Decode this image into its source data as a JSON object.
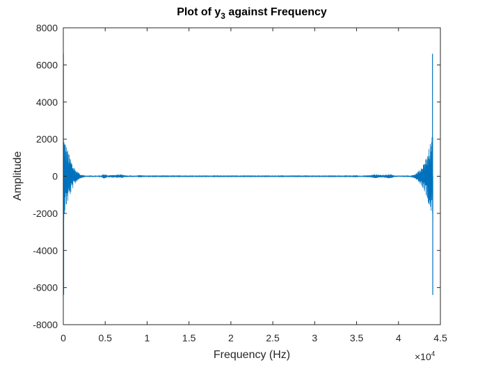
{
  "chart_data": {
    "type": "line",
    "title": {
      "prefix": "Plot of y",
      "subscript": "3",
      "suffix": " against Frequency"
    },
    "xlabel": "Frequency (Hz)",
    "ylabel": "Amplitude",
    "xlim": [
      0,
      45000
    ],
    "ylim": [
      -8000,
      8000
    ],
    "x_tick_values": [
      0,
      5000,
      10000,
      15000,
      20000,
      25000,
      30000,
      35000,
      40000,
      45000
    ],
    "x_tick_labels": [
      "0",
      "0.5",
      "1",
      "1.5",
      "2",
      "2.5",
      "3",
      "3.5",
      "4",
      "4.5"
    ],
    "x_exponent": {
      "base": "×10",
      "power": "4"
    },
    "y_tick_values": [
      -8000,
      -6000,
      -4000,
      -2000,
      0,
      2000,
      4000,
      6000,
      8000
    ],
    "y_tick_labels": [
      "-8000",
      "-6000",
      "-4000",
      "-2000",
      "0",
      "2000",
      "4000",
      "6000",
      "8000"
    ],
    "grid": false,
    "box": true,
    "series": [
      {
        "color": "#0072BD",
        "x_end": 44100,
        "spikes": [
          {
            "x": 10,
            "y": 6600
          },
          {
            "x": 40,
            "y": -6400
          },
          {
            "x": 44060,
            "y": 6600
          },
          {
            "x": 44090,
            "y": -6400
          }
        ],
        "envelope": [
          {
            "x": 0,
            "amp": 2500
          },
          {
            "x": 300,
            "amp": 1800
          },
          {
            "x": 700,
            "amp": 1200
          },
          {
            "x": 1100,
            "amp": 700
          },
          {
            "x": 1500,
            "amp": 350
          },
          {
            "x": 2000,
            "amp": 120
          },
          {
            "x": 2600,
            "amp": 40
          },
          {
            "x": 4500,
            "amp": 30
          },
          {
            "x": 4800,
            "amp": 130
          },
          {
            "x": 5300,
            "amp": 60
          },
          {
            "x": 6400,
            "amp": 80
          },
          {
            "x": 7000,
            "amp": 100
          },
          {
            "x": 7500,
            "amp": 50
          },
          {
            "x": 8300,
            "amp": 40
          },
          {
            "x": 9500,
            "amp": 15
          },
          {
            "x": 34500,
            "amp": 15
          },
          {
            "x": 35800,
            "amp": 40
          },
          {
            "x": 36600,
            "amp": 60
          },
          {
            "x": 37200,
            "amp": 110
          },
          {
            "x": 38200,
            "amp": 70
          },
          {
            "x": 39000,
            "amp": 130
          },
          {
            "x": 39500,
            "amp": 40
          },
          {
            "x": 41400,
            "amp": 40
          },
          {
            "x": 42000,
            "amp": 120
          },
          {
            "x": 42500,
            "amp": 350
          },
          {
            "x": 43000,
            "amp": 700
          },
          {
            "x": 43400,
            "amp": 1200
          },
          {
            "x": 43800,
            "amp": 1800
          },
          {
            "x": 44100,
            "amp": 2500
          }
        ]
      }
    ]
  }
}
